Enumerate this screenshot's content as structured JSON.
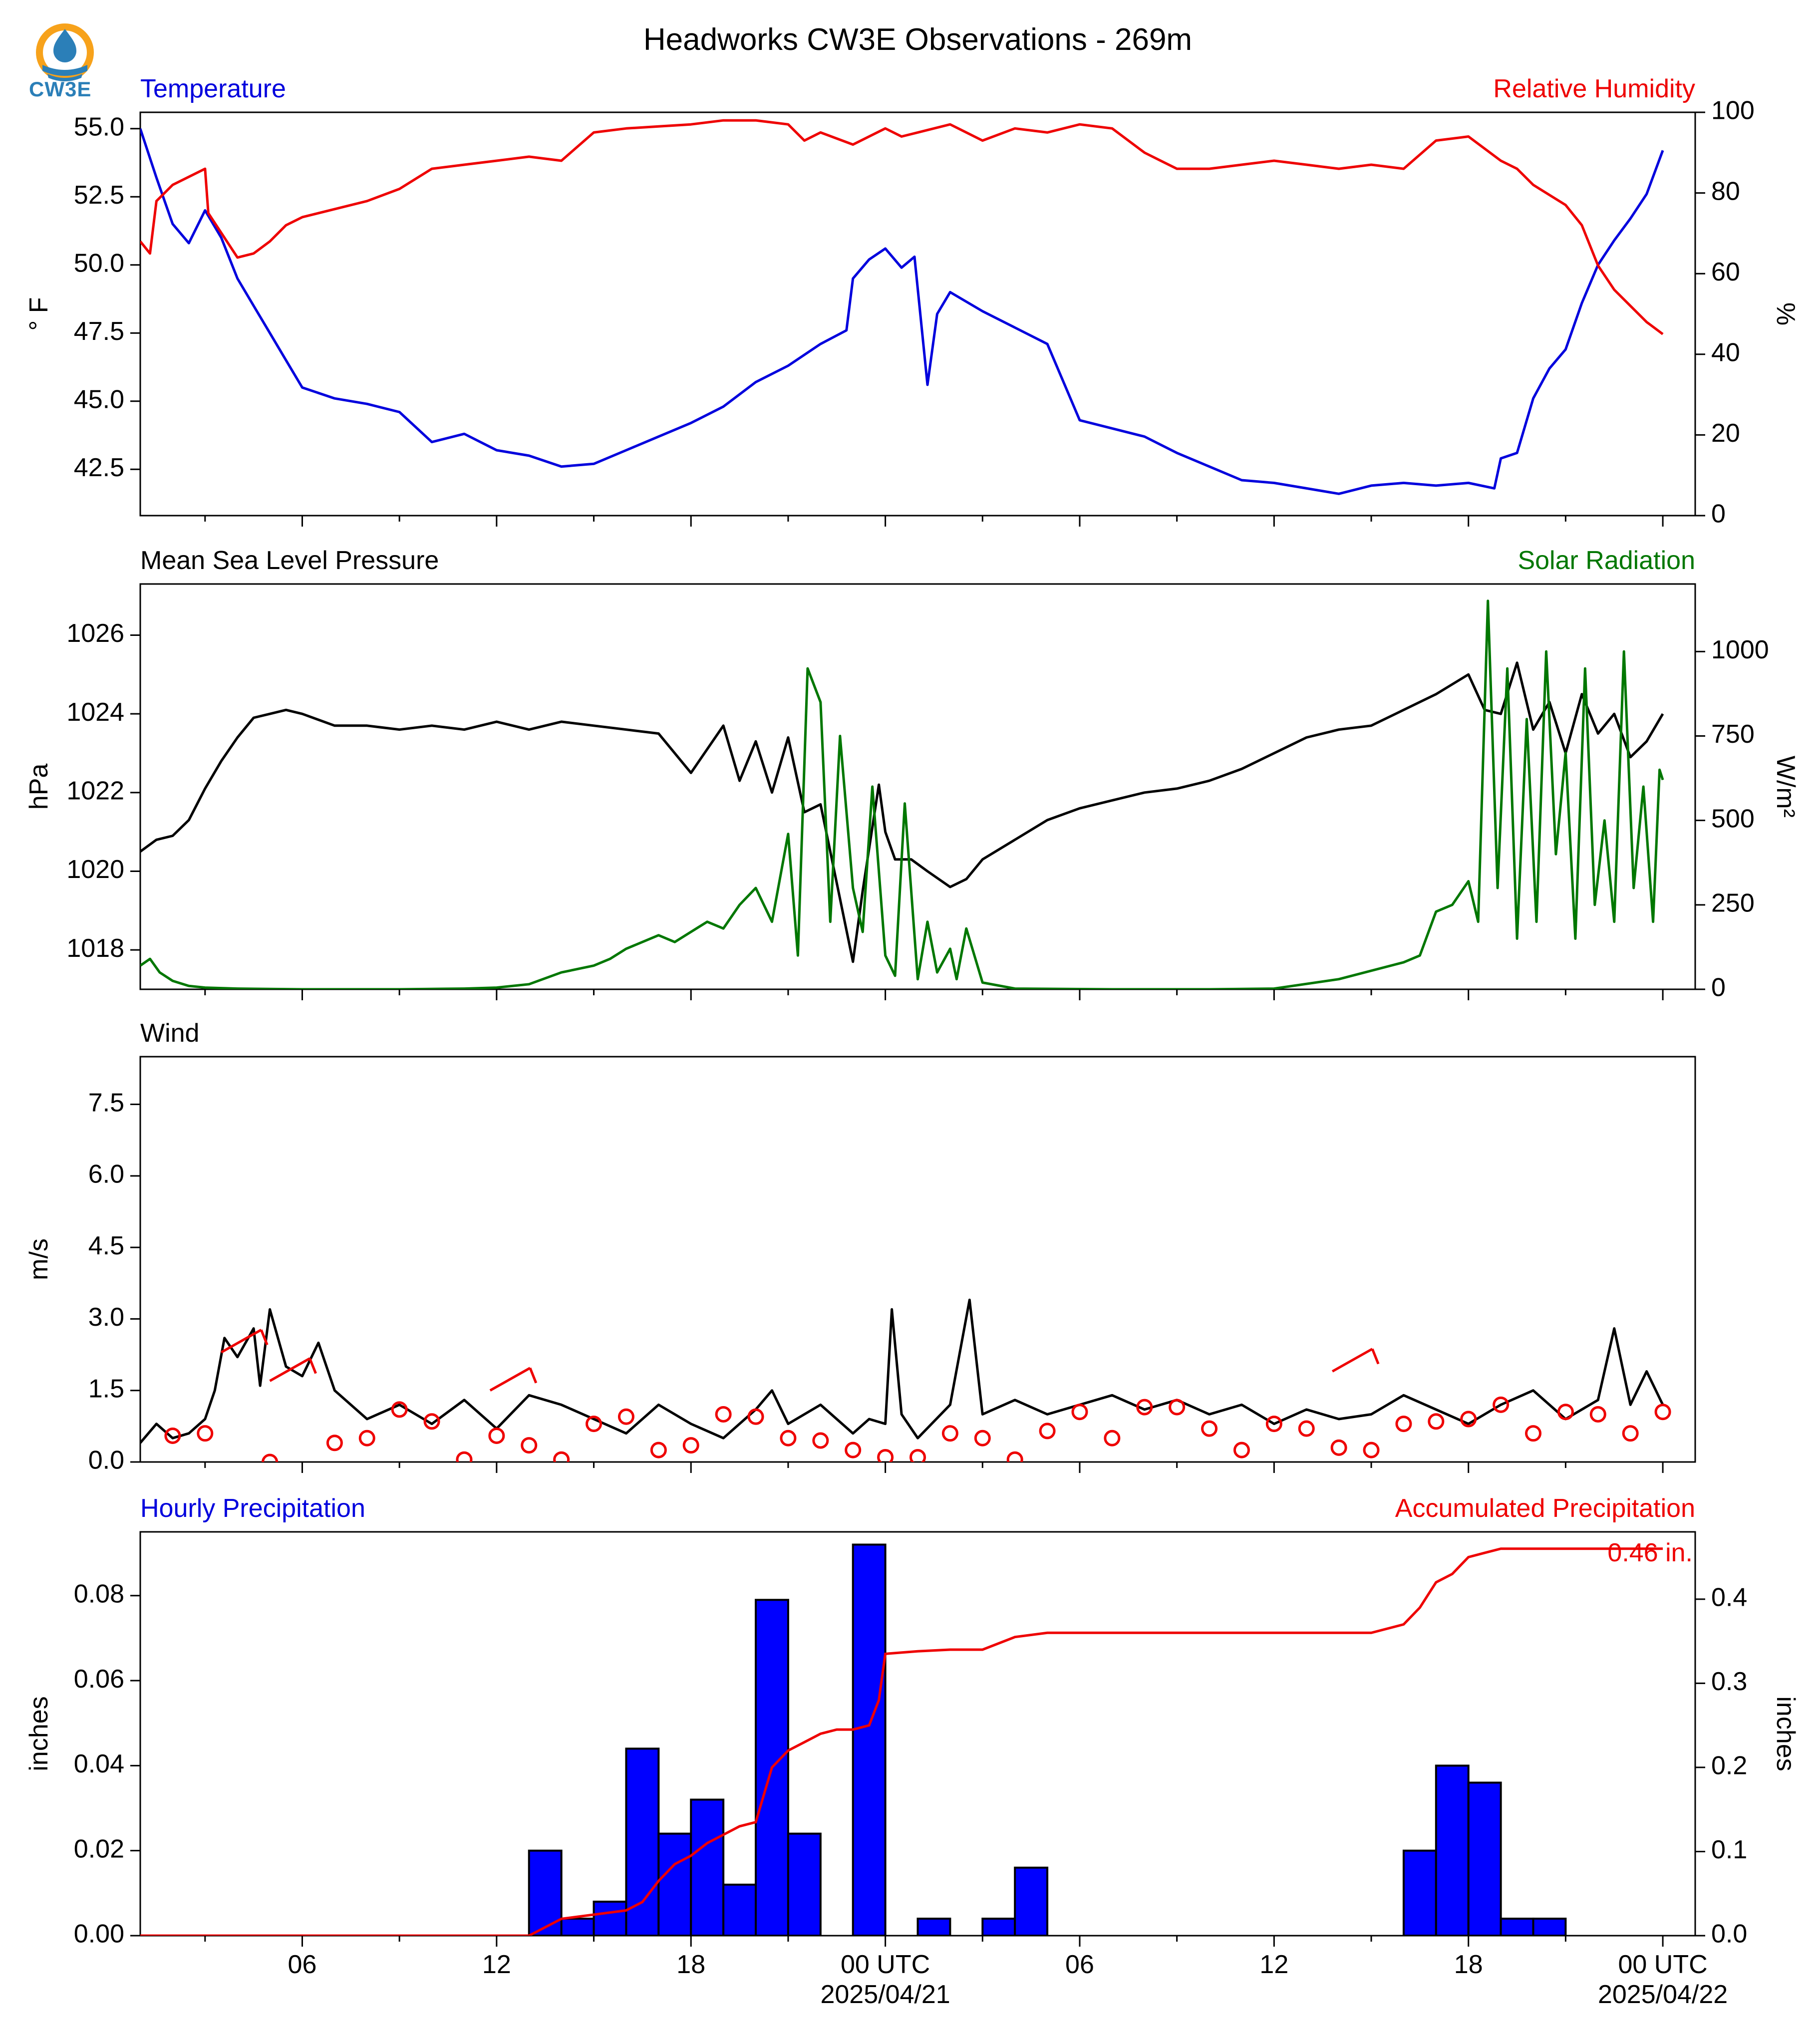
{
  "title": "Headworks CW3E Observations - 269m",
  "logo_text": "CW3E",
  "colors": {
    "blue": "#0000dd",
    "red": "#ee0000",
    "green": "#007700",
    "black": "#000000",
    "bar_fill": "#0000ff"
  },
  "x_axis": {
    "range_hours": [
      0,
      48
    ],
    "ticks": [
      {
        "hour": 5,
        "label": "06"
      },
      {
        "hour": 11,
        "label": "12"
      },
      {
        "hour": 17,
        "label": "18"
      },
      {
        "hour": 23,
        "label": "00 UTC",
        "sublabel": "2025/04/21"
      },
      {
        "hour": 29,
        "label": "06"
      },
      {
        "hour": 35,
        "label": "12"
      },
      {
        "hour": 41,
        "label": "18"
      },
      {
        "hour": 47,
        "label": "00 UTC",
        "sublabel": "2025/04/22"
      }
    ]
  },
  "chart_data": [
    {
      "type": "line",
      "title_left": "Temperature",
      "title_right": "Relative Humidity",
      "ylabel_left": "° F",
      "ylabel_right": "%",
      "ylim_left": [
        40.8,
        55.6
      ],
      "ylim_right": [
        0,
        100
      ],
      "yticks_left": [
        "42.5",
        "45.0",
        "47.5",
        "50.0",
        "52.5",
        "55.0"
      ],
      "yticks_right": [
        "0",
        "20",
        "40",
        "60",
        "80",
        "100"
      ],
      "series": [
        {
          "axis": "left",
          "color": "blue",
          "x": [
            0,
            0.5,
            1,
            1.5,
            2,
            2.5,
            3,
            3.5,
            4,
            4.5,
            5,
            6,
            7,
            8,
            9,
            10,
            11,
            12,
            13,
            14,
            15,
            16,
            17,
            18,
            19,
            20,
            21,
            21.8,
            22,
            22.5,
            23,
            23.5,
            23.9,
            24.3,
            24.6,
            25,
            26,
            27,
            28,
            29,
            30,
            31,
            32,
            33,
            34,
            35,
            36,
            37,
            38,
            39,
            40,
            41,
            41.8,
            42,
            42.5,
            43,
            43.5,
            44,
            44.5,
            45,
            45.5,
            46,
            46.5,
            47
          ],
          "y": [
            55,
            53.2,
            51.5,
            50.8,
            52,
            51,
            49.5,
            48.5,
            47.5,
            46.5,
            45.5,
            45.1,
            44.9,
            44.6,
            43.5,
            43.8,
            43.2,
            43.0,
            42.6,
            42.7,
            43.2,
            43.7,
            44.2,
            44.8,
            45.7,
            46.3,
            47.1,
            47.6,
            49.5,
            50.2,
            50.6,
            49.9,
            50.3,
            45.6,
            48.2,
            49.0,
            48.3,
            47.7,
            47.1,
            44.3,
            44.0,
            43.7,
            43.1,
            42.6,
            42.1,
            42.0,
            41.8,
            41.6,
            41.9,
            42.0,
            41.9,
            42.0,
            41.8,
            42.9,
            43.1,
            45.1,
            46.2,
            46.9,
            48.6,
            50.0,
            50.9,
            51.7,
            52.6,
            54.2
          ]
        },
        {
          "axis": "right",
          "color": "red",
          "x": [
            0,
            0.3,
            0.5,
            1,
            2,
            2.1,
            3,
            3.5,
            4,
            4.5,
            5,
            6,
            7,
            8,
            9,
            10,
            11,
            12,
            13,
            14,
            15,
            16,
            17,
            18,
            19,
            20,
            20.5,
            21,
            22,
            23,
            23.5,
            24,
            25,
            26,
            27,
            28,
            29,
            30,
            31,
            31.5,
            32,
            33,
            34,
            35,
            36,
            37,
            38,
            39,
            40,
            41,
            42,
            42.5,
            43,
            44,
            44.5,
            45,
            45.5,
            46,
            46.5,
            47
          ],
          "y": [
            68,
            65,
            78,
            82,
            86,
            75,
            64,
            65,
            68,
            72,
            74,
            76,
            78,
            81,
            86,
            87,
            88,
            89,
            88,
            95,
            96,
            96.5,
            97,
            98,
            98,
            97,
            93,
            95,
            92,
            96,
            94,
            95,
            97,
            93,
            96,
            95,
            97,
            96,
            90,
            88,
            86,
            86,
            87,
            88,
            87,
            86,
            87,
            86,
            93,
            94,
            88,
            86,
            82,
            77,
            72,
            62,
            56,
            52,
            48,
            45
          ]
        }
      ]
    },
    {
      "type": "line",
      "title_left": "Mean Sea Level Pressure",
      "title_right": "Solar Radiation",
      "ylabel_left": "hPa",
      "ylabel_right": "W/m²",
      "ylim_left": [
        1017.0,
        1027.3
      ],
      "ylim_right": [
        0,
        1200
      ],
      "yticks_left": [
        "1018",
        "1020",
        "1022",
        "1024",
        "1026"
      ],
      "yticks_right": [
        "0",
        "250",
        "500",
        "750",
        "1000"
      ],
      "series": [
        {
          "axis": "left",
          "color": "black",
          "x": [
            0,
            0.5,
            1,
            1.5,
            2,
            2.5,
            3,
            3.5,
            4,
            4.5,
            5,
            6,
            7,
            8,
            9,
            10,
            11,
            12,
            13,
            14,
            15,
            16,
            17,
            18,
            18.5,
            19,
            19.5,
            20,
            20.5,
            21,
            21.5,
            22,
            22.3,
            22.8,
            23,
            23.3,
            23.8,
            24.3,
            25,
            25.5,
            26,
            27,
            28,
            29,
            30,
            31,
            32,
            33,
            34,
            35,
            36,
            37,
            38,
            39,
            40,
            41,
            41.5,
            42,
            42.5,
            43,
            43.5,
            44,
            44.5,
            45,
            45.5,
            46,
            46.5,
            47
          ],
          "y": [
            1020.5,
            1020.8,
            1020.9,
            1021.3,
            1022.1,
            1022.8,
            1023.4,
            1023.9,
            1024.0,
            1024.1,
            1024.0,
            1023.7,
            1023.7,
            1023.6,
            1023.7,
            1023.6,
            1023.8,
            1023.6,
            1023.8,
            1023.7,
            1023.6,
            1023.5,
            1022.5,
            1023.7,
            1022.3,
            1023.3,
            1022.0,
            1023.4,
            1021.5,
            1021.7,
            1019.7,
            1017.7,
            1019.5,
            1022.2,
            1021.0,
            1020.3,
            1020.3,
            1020.0,
            1019.6,
            1019.8,
            1020.3,
            1020.8,
            1021.3,
            1021.6,
            1021.8,
            1022.0,
            1022.1,
            1022.3,
            1022.6,
            1023.0,
            1023.4,
            1023.6,
            1023.7,
            1024.1,
            1024.5,
            1025.0,
            1024.1,
            1024.0,
            1025.3,
            1023.6,
            1024.3,
            1023.0,
            1024.5,
            1023.5,
            1024.0,
            1022.9,
            1023.3,
            1024.0
          ]
        },
        {
          "axis": "right",
          "color": "green",
          "x": [
            0,
            0.3,
            0.6,
            1,
            1.5,
            2,
            3,
            5,
            8,
            10,
            11,
            12,
            13,
            14,
            14.5,
            15,
            16,
            16.5,
            17,
            17.5,
            18,
            18.5,
            19,
            19.5,
            20,
            20.3,
            20.6,
            21,
            21.3,
            21.6,
            22,
            22.3,
            22.6,
            23,
            23.3,
            23.6,
            24,
            24.3,
            24.6,
            25,
            25.2,
            25.5,
            26,
            27,
            30,
            33,
            35,
            37,
            39,
            39.5,
            40,
            40.5,
            41,
            41.3,
            41.6,
            41.9,
            42.2,
            42.5,
            42.8,
            43.1,
            43.4,
            43.7,
            44,
            44.3,
            44.6,
            44.9,
            45.2,
            45.5,
            45.8,
            46.1,
            46.4,
            46.7,
            46.9,
            47
          ],
          "y": [
            70,
            90,
            50,
            25,
            10,
            5,
            2,
            0,
            0,
            2,
            5,
            15,
            50,
            70,
            90,
            120,
            160,
            140,
            170,
            200,
            180,
            250,
            300,
            200,
            460,
            100,
            950,
            850,
            200,
            750,
            300,
            170,
            600,
            100,
            40,
            550,
            30,
            200,
            50,
            120,
            30,
            180,
            20,
            2,
            0,
            0,
            2,
            30,
            80,
            100,
            230,
            250,
            320,
            200,
            1150,
            300,
            950,
            150,
            800,
            200,
            1000,
            400,
            700,
            150,
            950,
            250,
            500,
            200,
            1000,
            300,
            600,
            200,
            650,
            620
          ]
        }
      ]
    },
    {
      "type": "line",
      "title_left": "Wind",
      "ylabel_left": "m/s",
      "ylim_left": [
        0,
        8.5
      ],
      "yticks_left": [
        "0.0",
        "1.5",
        "3.0",
        "4.5",
        "6.0",
        "7.5"
      ],
      "series": [
        {
          "axis": "left",
          "color": "black",
          "x": [
            0,
            0.5,
            1,
            1.5,
            2,
            2.3,
            2.6,
            3,
            3.5,
            3.7,
            4,
            4.5,
            5,
            5.5,
            6,
            7,
            8,
            9,
            10,
            11,
            12,
            13,
            14,
            15,
            16,
            17,
            18,
            19,
            19.5,
            20,
            21,
            22,
            22.5,
            23,
            23.2,
            23.5,
            24,
            25,
            25.6,
            26,
            27,
            28,
            29,
            30,
            31,
            32,
            33,
            34,
            35,
            36,
            37,
            38,
            39,
            40,
            41,
            42,
            43,
            43.5,
            44,
            45,
            45.5,
            46,
            46.5,
            47
          ],
          "y": [
            0.4,
            0.8,
            0.5,
            0.6,
            0.9,
            1.5,
            2.6,
            2.2,
            2.8,
            1.6,
            3.2,
            2.0,
            1.8,
            2.5,
            1.5,
            0.9,
            1.2,
            0.8,
            1.3,
            0.7,
            1.4,
            1.2,
            0.9,
            0.6,
            1.2,
            0.8,
            0.5,
            1.1,
            1.5,
            0.8,
            1.2,
            0.6,
            0.9,
            0.8,
            3.2,
            1.0,
            0.5,
            1.2,
            3.4,
            1.0,
            1.3,
            1.0,
            1.2,
            1.4,
            1.1,
            1.3,
            1.0,
            1.2,
            0.8,
            1.1,
            0.9,
            1.0,
            1.4,
            1.1,
            0.8,
            1.2,
            1.5,
            1.2,
            0.9,
            1.3,
            2.8,
            1.2,
            1.9,
            1.2
          ]
        },
        {
          "axis": "left",
          "color": "red",
          "style": "circles",
          "x": [
            1,
            2,
            4,
            6,
            7,
            8,
            9,
            10,
            11,
            12,
            13,
            14,
            15,
            16,
            17,
            18,
            19,
            20,
            21,
            22,
            23,
            24,
            25,
            26,
            27,
            28,
            29,
            30,
            31,
            32,
            33,
            34,
            35,
            36,
            37,
            38,
            39,
            40,
            41,
            42,
            43,
            44,
            45,
            46,
            47
          ],
          "y": [
            0.55,
            0.6,
            0.0,
            0.4,
            0.5,
            1.1,
            0.85,
            0.05,
            0.55,
            0.35,
            0.05,
            0.8,
            0.95,
            0.25,
            0.35,
            1.0,
            0.95,
            0.5,
            0.45,
            0.25,
            0.1,
            0.1,
            0.6,
            0.5,
            0.05,
            0.65,
            1.05,
            0.5,
            1.15,
            1.15,
            0.7,
            0.25,
            0.8,
            0.7,
            0.3,
            0.25,
            0.8,
            0.85,
            0.9,
            1.2,
            0.6,
            1.05,
            1.0,
            0.6,
            1.05
          ]
        },
        {
          "axis": "left",
          "color": "red",
          "style": "barbs",
          "x": [
            2.5,
            4,
            10.8,
            36.8
          ],
          "y": [
            2.3,
            1.7,
            1.5,
            1.9
          ]
        }
      ]
    },
    {
      "type": "bar",
      "title_left": "Hourly Precipitation",
      "title_right": "Accumulated Precipitation",
      "ylabel_left": "inches",
      "ylabel_right": "inches",
      "ylim_left": [
        0,
        0.095
      ],
      "ylim_right": [
        0,
        0.48
      ],
      "yticks_left": [
        "0.00",
        "0.02",
        "0.04",
        "0.06",
        "0.08"
      ],
      "yticks_right": [
        "0.0",
        "0.1",
        "0.2",
        "0.3",
        "0.4"
      ],
      "annotation": "0.46 in.",
      "bars": {
        "x": [
          12,
          13,
          14,
          15,
          16,
          17,
          18,
          19,
          20,
          22,
          24,
          26,
          27,
          39,
          40,
          41,
          42,
          43
        ],
        "values": [
          0.02,
          0.004,
          0.008,
          0.044,
          0.024,
          0.032,
          0.012,
          0.079,
          0.024,
          0.092,
          0.004,
          0.004,
          0.016,
          0.02,
          0.04,
          0.036,
          0.004,
          0.004
        ]
      },
      "accumulated": {
        "x": [
          0,
          12,
          12.5,
          13,
          14,
          15,
          15.5,
          16,
          16.5,
          17,
          17.5,
          18,
          18.5,
          19,
          19.5,
          20,
          20.5,
          21,
          21.5,
          22,
          22.5,
          22.8,
          23,
          24,
          25,
          26,
          27,
          28,
          30,
          34,
          38,
          39,
          39.5,
          40,
          40.5,
          41,
          41.5,
          42,
          43,
          47
        ],
        "y": [
          0,
          0,
          0.01,
          0.02,
          0.025,
          0.03,
          0.04,
          0.065,
          0.085,
          0.095,
          0.11,
          0.12,
          0.13,
          0.135,
          0.2,
          0.22,
          0.23,
          0.24,
          0.245,
          0.245,
          0.25,
          0.28,
          0.335,
          0.338,
          0.34,
          0.34,
          0.355,
          0.36,
          0.36,
          0.36,
          0.36,
          0.37,
          0.39,
          0.42,
          0.43,
          0.45,
          0.455,
          0.46,
          0.46,
          0.46
        ]
      }
    }
  ]
}
